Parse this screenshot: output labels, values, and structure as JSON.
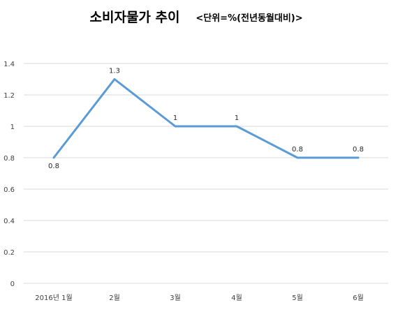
{
  "chart_data": {
    "type": "line",
    "title": "소비자물가 추이",
    "subtitle": "<단위=%(전년동월대비)>",
    "categories": [
      "2016년 1월",
      "2월",
      "3월",
      "4월",
      "5월",
      "6월"
    ],
    "series": [
      {
        "values": [
          0.8,
          1.3,
          1.0,
          1.0,
          0.8,
          0.8
        ],
        "color": "#5b9bd5"
      }
    ],
    "data_labels": [
      "0.8",
      "1.3",
      "1",
      "1",
      "0.8",
      "0.8"
    ],
    "y_ticks": [
      "0",
      "0.2",
      "0.4",
      "0.6",
      "0.8",
      "1",
      "1.2",
      "1.4"
    ],
    "ylim": [
      0,
      1.4
    ],
    "grid": true,
    "legend": "none"
  }
}
